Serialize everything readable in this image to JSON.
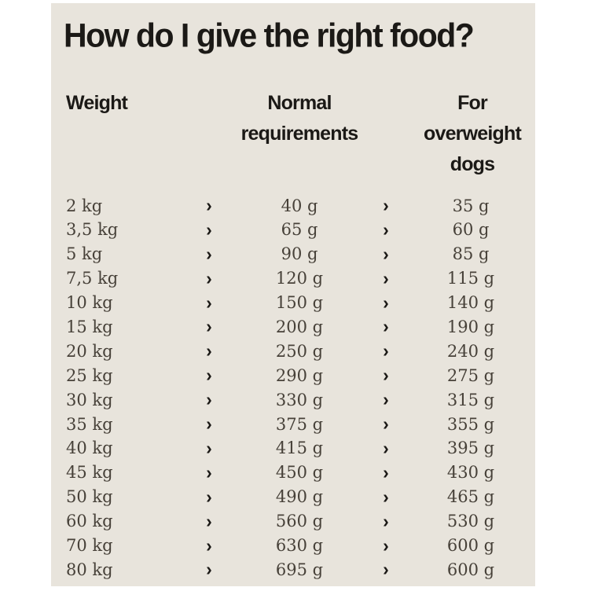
{
  "title": "How do I give the right food?",
  "table": {
    "headers": {
      "weight": "Weight",
      "normal": "Normal requirements",
      "overweight": "For overweight dogs"
    },
    "arrow": "›",
    "rows": [
      {
        "weight": "2 kg",
        "normal": "40 g",
        "overweight": "35 g"
      },
      {
        "weight": "3,5 kg",
        "normal": "65 g",
        "overweight": "60 g"
      },
      {
        "weight": "5 kg",
        "normal": "90 g",
        "overweight": "85 g"
      },
      {
        "weight": "7,5 kg",
        "normal": "120 g",
        "overweight": "115 g"
      },
      {
        "weight": "10 kg",
        "normal": "150 g",
        "overweight": "140 g"
      },
      {
        "weight": "15 kg",
        "normal": "200 g",
        "overweight": "190 g"
      },
      {
        "weight": "20 kg",
        "normal": "250 g",
        "overweight": "240 g"
      },
      {
        "weight": "25 kg",
        "normal": "290 g",
        "overweight": "275 g"
      },
      {
        "weight": "30 kg",
        "normal": "330 g",
        "overweight": "315 g"
      },
      {
        "weight": "35 kg",
        "normal": "375 g",
        "overweight": "355 g"
      },
      {
        "weight": "40 kg",
        "normal": "415 g",
        "overweight": "395 g"
      },
      {
        "weight": "45 kg",
        "normal": "450 g",
        "overweight": "430 g"
      },
      {
        "weight": "50 kg",
        "normal": "490 g",
        "overweight": "465 g"
      },
      {
        "weight": "60 kg",
        "normal": "560 g",
        "overweight": "530 g"
      },
      {
        "weight": "70 kg",
        "normal": "630 g",
        "overweight": "600 g"
      },
      {
        "weight": "80 kg",
        "normal": "695 g",
        "overweight": "600 g"
      }
    ]
  },
  "colors": {
    "page_bg": "#ffffff",
    "panel_bg": "#e8e4dc",
    "heading_text": "#1b1916",
    "body_text": "#474139"
  }
}
